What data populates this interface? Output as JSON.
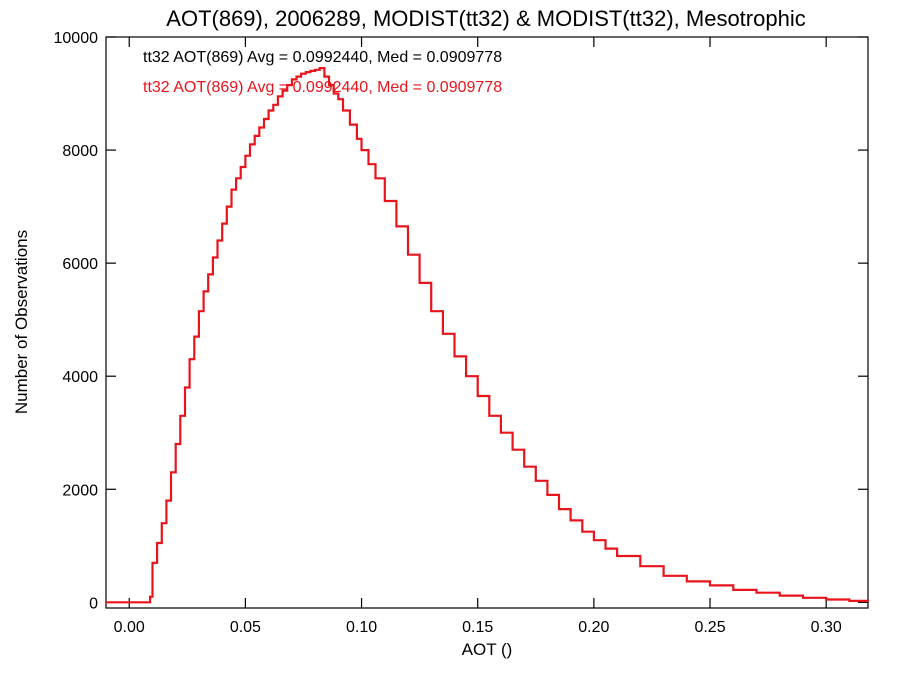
{
  "chart_data": {
    "type": "line",
    "title": "AOT(869), 2006289, MODIST(tt32) & MODIST(tt32), Mesotrophic",
    "xlabel": "AOT ()",
    "ylabel": "Number of Observations",
    "xlim": [
      -0.01,
      0.318
    ],
    "ylim": [
      -100,
      10000
    ],
    "x_ticks": [
      0.0,
      0.05,
      0.1,
      0.15,
      0.2,
      0.25,
      0.3
    ],
    "x_tick_labels": [
      "0.00",
      "0.05",
      "0.10",
      "0.15",
      "0.20",
      "0.25",
      "0.30"
    ],
    "y_ticks": [
      0,
      2000,
      4000,
      6000,
      8000,
      10000
    ],
    "y_tick_labels": [
      "0",
      "2000",
      "4000",
      "6000",
      "8000",
      "10000"
    ],
    "grid": false,
    "annotations": [
      {
        "text": "tt32 AOT(869) Avg = 0.0992440, Med = 0.0909778",
        "color": "#000000"
      },
      {
        "text": "tt32 AOT(869) Avg = 0.0992440, Med = 0.0909778",
        "color": "#e8141c"
      }
    ],
    "series": [
      {
        "color": "#e8141c",
        "x": [
          -0.01,
          0.0,
          0.005,
          0.008,
          0.009,
          0.01,
          0.012,
          0.014,
          0.016,
          0.018,
          0.02,
          0.022,
          0.024,
          0.026,
          0.028,
          0.03,
          0.032,
          0.034,
          0.036,
          0.038,
          0.04,
          0.042,
          0.044,
          0.046,
          0.048,
          0.05,
          0.052,
          0.054,
          0.056,
          0.058,
          0.06,
          0.062,
          0.064,
          0.066,
          0.068,
          0.07,
          0.072,
          0.074,
          0.076,
          0.078,
          0.08,
          0.082,
          0.084,
          0.086,
          0.088,
          0.09,
          0.092,
          0.095,
          0.098,
          0.1,
          0.103,
          0.106,
          0.11,
          0.115,
          0.12,
          0.125,
          0.13,
          0.135,
          0.14,
          0.145,
          0.15,
          0.155,
          0.16,
          0.165,
          0.17,
          0.175,
          0.18,
          0.185,
          0.19,
          0.195,
          0.2,
          0.205,
          0.21,
          0.22,
          0.23,
          0.24,
          0.25,
          0.26,
          0.27,
          0.28,
          0.29,
          0.3,
          0.31,
          0.318
        ],
        "y": [
          0,
          0,
          0,
          0,
          100,
          700,
          1050,
          1400,
          1800,
          2300,
          2800,
          3300,
          3800,
          4300,
          4700,
          5150,
          5500,
          5800,
          6100,
          6400,
          6700,
          7000,
          7300,
          7500,
          7700,
          7900,
          8100,
          8250,
          8400,
          8550,
          8700,
          8800,
          8950,
          9050,
          9150,
          9250,
          9300,
          9350,
          9380,
          9400,
          9420,
          9450,
          9300,
          9150,
          9000,
          8900,
          8700,
          8450,
          8200,
          8000,
          7750,
          7500,
          7100,
          6650,
          6150,
          5650,
          5150,
          4750,
          4350,
          4000,
          3650,
          3300,
          3000,
          2700,
          2400,
          2150,
          1900,
          1650,
          1450,
          1250,
          1100,
          950,
          820,
          640,
          470,
          370,
          300,
          220,
          170,
          120,
          80,
          50,
          25,
          10
        ]
      }
    ]
  }
}
